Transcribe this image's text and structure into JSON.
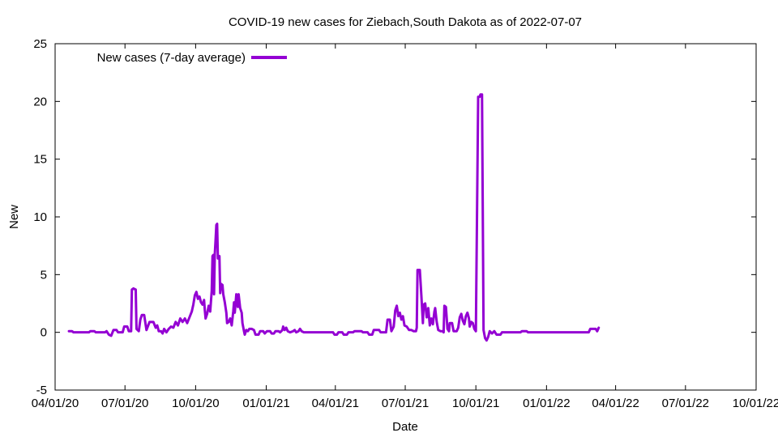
{
  "chart_data": {
    "type": "line",
    "title": "COVID-19 new cases for Ziebach,South Dakota as of 2022-07-07",
    "xlabel": "Date",
    "ylabel": "New",
    "ylim": [
      -5,
      25
    ],
    "yticks": [
      -5,
      0,
      5,
      10,
      15,
      20,
      25
    ],
    "xlim": [
      "2020-04-01",
      "2022-10-01"
    ],
    "xticks": [
      {
        "date": "2020-04-01",
        "label": "04/01/20"
      },
      {
        "date": "2020-07-01",
        "label": "07/01/20"
      },
      {
        "date": "2020-10-01",
        "label": "10/01/20"
      },
      {
        "date": "2021-01-01",
        "label": "01/01/21"
      },
      {
        "date": "2021-04-01",
        "label": "04/01/21"
      },
      {
        "date": "2021-07-01",
        "label": "07/01/21"
      },
      {
        "date": "2021-10-01",
        "label": "10/01/21"
      },
      {
        "date": "2022-01-01",
        "label": "01/01/22"
      },
      {
        "date": "2022-04-01",
        "label": "04/01/22"
      },
      {
        "date": "2022-07-01",
        "label": "07/01/22"
      },
      {
        "date": "2022-10-01",
        "label": "10/01/22"
      }
    ],
    "grid": false,
    "legend_position": "top-left",
    "color": "#9400d3",
    "series": [
      {
        "name": "New cases (7-day average)",
        "points": [
          [
            "2020-04-19",
            0.1
          ],
          [
            "2020-04-23",
            0.1
          ],
          [
            "2020-04-25",
            0
          ],
          [
            "2020-05-15",
            0
          ],
          [
            "2020-05-17",
            0.1
          ],
          [
            "2020-05-22",
            0.1
          ],
          [
            "2020-05-24",
            0
          ],
          [
            "2020-06-05",
            0
          ],
          [
            "2020-06-07",
            0.1
          ],
          [
            "2020-06-10",
            -0.2
          ],
          [
            "2020-06-13",
            -0.3
          ],
          [
            "2020-06-16",
            0.2
          ],
          [
            "2020-06-20",
            0.2
          ],
          [
            "2020-06-22",
            0
          ],
          [
            "2020-06-28",
            0
          ],
          [
            "2020-06-30",
            0.5
          ],
          [
            "2020-07-04",
            0.5
          ],
          [
            "2020-07-06",
            0.1
          ],
          [
            "2020-07-09",
            0.1
          ],
          [
            "2020-07-10",
            3.7
          ],
          [
            "2020-07-12",
            3.8
          ],
          [
            "2020-07-15",
            3.7
          ],
          [
            "2020-07-16",
            0.3
          ],
          [
            "2020-07-19",
            0.1
          ],
          [
            "2020-07-21",
            1.1
          ],
          [
            "2020-07-23",
            1.5
          ],
          [
            "2020-07-26",
            1.5
          ],
          [
            "2020-07-29",
            0.2
          ],
          [
            "2020-08-02",
            0.9
          ],
          [
            "2020-08-07",
            0.9
          ],
          [
            "2020-08-10",
            0.4
          ],
          [
            "2020-08-12",
            0.6
          ],
          [
            "2020-08-14",
            0.1
          ],
          [
            "2020-08-17",
            0.1
          ],
          [
            "2020-08-19",
            -0.1
          ],
          [
            "2020-08-21",
            0.3
          ],
          [
            "2020-08-24",
            0
          ],
          [
            "2020-08-27",
            0.3
          ],
          [
            "2020-08-30",
            0.5
          ],
          [
            "2020-09-02",
            0.4
          ],
          [
            "2020-09-05",
            0.9
          ],
          [
            "2020-09-08",
            0.6
          ],
          [
            "2020-09-11",
            1.2
          ],
          [
            "2020-09-14",
            0.9
          ],
          [
            "2020-09-17",
            1.2
          ],
          [
            "2020-09-20",
            0.8
          ],
          [
            "2020-09-23",
            1.3
          ],
          [
            "2020-09-26",
            1.8
          ],
          [
            "2020-09-28",
            2.4
          ],
          [
            "2020-09-30",
            3.2
          ],
          [
            "2020-10-02",
            3.5
          ],
          [
            "2020-10-04",
            2.9
          ],
          [
            "2020-10-06",
            3.1
          ],
          [
            "2020-10-08",
            2.6
          ],
          [
            "2020-10-10",
            2.4
          ],
          [
            "2020-10-12",
            2.8
          ],
          [
            "2020-10-13",
            1.9
          ],
          [
            "2020-10-14",
            1.2
          ],
          [
            "2020-10-16",
            1.6
          ],
          [
            "2020-10-18",
            2.3
          ],
          [
            "2020-10-20",
            1.8
          ],
          [
            "2020-10-22",
            3.6
          ],
          [
            "2020-10-23",
            6.6
          ],
          [
            "2020-10-24",
            6.7
          ],
          [
            "2020-10-25",
            3.3
          ],
          [
            "2020-10-26",
            6.8
          ],
          [
            "2020-10-27",
            8.0
          ],
          [
            "2020-10-28",
            9.3
          ],
          [
            "2020-10-29",
            9.4
          ],
          [
            "2020-10-30",
            6.4
          ],
          [
            "2020-11-01",
            6.6
          ],
          [
            "2020-11-02",
            3.4
          ],
          [
            "2020-11-03",
            4.2
          ],
          [
            "2020-11-05",
            4.1
          ],
          [
            "2020-11-06",
            3.3
          ],
          [
            "2020-11-08",
            2.6
          ],
          [
            "2020-11-10",
            1.7
          ],
          [
            "2020-11-11",
            0.8
          ],
          [
            "2020-11-13",
            0.9
          ],
          [
            "2020-11-15",
            1.2
          ],
          [
            "2020-11-17",
            0.6
          ],
          [
            "2020-11-19",
            1.8
          ],
          [
            "2020-11-20",
            2.6
          ],
          [
            "2020-11-21",
            1.7
          ],
          [
            "2020-11-23",
            3.3
          ],
          [
            "2020-11-25",
            2.2
          ],
          [
            "2020-11-26",
            3.3
          ],
          [
            "2020-11-28",
            2.1
          ],
          [
            "2020-11-30",
            1.7
          ],
          [
            "2020-12-01",
            0.8
          ],
          [
            "2020-12-03",
            0.1
          ],
          [
            "2020-12-04",
            -0.2
          ],
          [
            "2020-12-06",
            0.2
          ],
          [
            "2020-12-08",
            0.1
          ],
          [
            "2020-12-10",
            0.3
          ],
          [
            "2020-12-13",
            0.3
          ],
          [
            "2020-12-16",
            0.2
          ],
          [
            "2020-12-18",
            -0.2
          ],
          [
            "2020-12-22",
            -0.2
          ],
          [
            "2020-12-24",
            0.1
          ],
          [
            "2020-12-28",
            0.1
          ],
          [
            "2020-12-30",
            -0.1
          ],
          [
            "2021-01-02",
            0.1
          ],
          [
            "2021-01-06",
            0.1
          ],
          [
            "2021-01-08",
            -0.1
          ],
          [
            "2021-01-11",
            -0.1
          ],
          [
            "2021-01-13",
            0.1
          ],
          [
            "2021-01-17",
            0.1
          ],
          [
            "2021-01-19",
            0
          ],
          [
            "2021-01-22",
            0.2
          ],
          [
            "2021-01-23",
            0.5
          ],
          [
            "2021-01-25",
            0.2
          ],
          [
            "2021-01-27",
            0.4
          ],
          [
            "2021-01-29",
            0.1
          ],
          [
            "2021-02-01",
            0
          ],
          [
            "2021-02-05",
            0.1
          ],
          [
            "2021-02-07",
            0.2
          ],
          [
            "2021-02-09",
            0
          ],
          [
            "2021-02-12",
            0.1
          ],
          [
            "2021-02-14",
            0.3
          ],
          [
            "2021-02-16",
            0.1
          ],
          [
            "2021-02-19",
            0
          ],
          [
            "2021-03-29",
            0
          ],
          [
            "2021-03-31",
            -0.2
          ],
          [
            "2021-04-03",
            -0.2
          ],
          [
            "2021-04-05",
            0
          ],
          [
            "2021-04-10",
            0
          ],
          [
            "2021-04-12",
            -0.2
          ],
          [
            "2021-04-16",
            -0.2
          ],
          [
            "2021-04-18",
            0
          ],
          [
            "2021-04-24",
            0
          ],
          [
            "2021-04-26",
            0.1
          ],
          [
            "2021-05-05",
            0.1
          ],
          [
            "2021-05-07",
            0
          ],
          [
            "2021-05-13",
            0
          ],
          [
            "2021-05-15",
            -0.2
          ],
          [
            "2021-05-19",
            -0.2
          ],
          [
            "2021-05-21",
            0.2
          ],
          [
            "2021-05-28",
            0.2
          ],
          [
            "2021-05-30",
            0
          ],
          [
            "2021-06-06",
            0
          ],
          [
            "2021-06-08",
            1.1
          ],
          [
            "2021-06-11",
            1.1
          ],
          [
            "2021-06-13",
            0.1
          ],
          [
            "2021-06-16",
            0.5
          ],
          [
            "2021-06-18",
            1.9
          ],
          [
            "2021-06-20",
            2.3
          ],
          [
            "2021-06-22",
            1.4
          ],
          [
            "2021-06-24",
            1.7
          ],
          [
            "2021-06-26",
            1.1
          ],
          [
            "2021-06-28",
            1.4
          ],
          [
            "2021-06-30",
            0.6
          ],
          [
            "2021-07-03",
            0.5
          ],
          [
            "2021-07-06",
            0.2
          ],
          [
            "2021-07-09",
            0.2
          ],
          [
            "2021-07-12",
            0.1
          ],
          [
            "2021-07-15",
            0.1
          ],
          [
            "2021-07-16",
            0.4
          ],
          [
            "2021-07-17",
            5.4
          ],
          [
            "2021-07-20",
            5.4
          ],
          [
            "2021-07-22",
            3.2
          ],
          [
            "2021-07-24",
            0.8
          ],
          [
            "2021-07-25",
            2.4
          ],
          [
            "2021-07-27",
            2.5
          ],
          [
            "2021-07-29",
            1.3
          ],
          [
            "2021-07-31",
            2.1
          ],
          [
            "2021-08-02",
            0.6
          ],
          [
            "2021-08-04",
            1.2
          ],
          [
            "2021-08-06",
            0.7
          ],
          [
            "2021-08-08",
            1.8
          ],
          [
            "2021-08-09",
            2.1
          ],
          [
            "2021-08-11",
            0.9
          ],
          [
            "2021-08-13",
            0.2
          ],
          [
            "2021-08-16",
            0.1
          ],
          [
            "2021-08-19",
            0.1
          ],
          [
            "2021-08-20",
            0
          ],
          [
            "2021-08-21",
            2.3
          ],
          [
            "2021-08-23",
            2.2
          ],
          [
            "2021-08-25",
            0.3
          ],
          [
            "2021-08-27",
            0.1
          ],
          [
            "2021-08-28",
            0.8
          ],
          [
            "2021-08-31",
            0.8
          ],
          [
            "2021-09-02",
            0.1
          ],
          [
            "2021-09-06",
            0.1
          ],
          [
            "2021-09-08",
            0.4
          ],
          [
            "2021-09-10",
            1.3
          ],
          [
            "2021-09-12",
            1.6
          ],
          [
            "2021-09-14",
            1.0
          ],
          [
            "2021-09-16",
            0.7
          ],
          [
            "2021-09-18",
            1.4
          ],
          [
            "2021-09-20",
            1.7
          ],
          [
            "2021-09-22",
            1.2
          ],
          [
            "2021-09-23",
            0.5
          ],
          [
            "2021-09-25",
            0.9
          ],
          [
            "2021-09-27",
            0.8
          ],
          [
            "2021-09-29",
            0.3
          ],
          [
            "2021-10-01",
            0.1
          ],
          [
            "2021-10-04",
            20.4
          ],
          [
            "2021-10-06",
            20.4
          ],
          [
            "2021-10-07",
            20.6
          ],
          [
            "2021-10-09",
            20.6
          ],
          [
            "2021-10-11",
            0.2
          ],
          [
            "2021-10-13",
            -0.5
          ],
          [
            "2021-10-15",
            -0.7
          ],
          [
            "2021-10-17",
            -0.4
          ],
          [
            "2021-10-19",
            0.1
          ],
          [
            "2021-10-22",
            -0.1
          ],
          [
            "2021-10-25",
            0.1
          ],
          [
            "2021-10-28",
            -0.2
          ],
          [
            "2021-11-02",
            -0.2
          ],
          [
            "2021-11-04",
            0
          ],
          [
            "2021-11-28",
            0
          ],
          [
            "2021-11-30",
            0.1
          ],
          [
            "2021-12-06",
            0.1
          ],
          [
            "2021-12-08",
            0
          ],
          [
            "2022-02-25",
            0
          ],
          [
            "2022-02-27",
            0.3
          ],
          [
            "2022-03-06",
            0.3
          ],
          [
            "2022-03-08",
            0.1
          ],
          [
            "2022-03-10",
            0.4
          ]
        ]
      }
    ]
  }
}
